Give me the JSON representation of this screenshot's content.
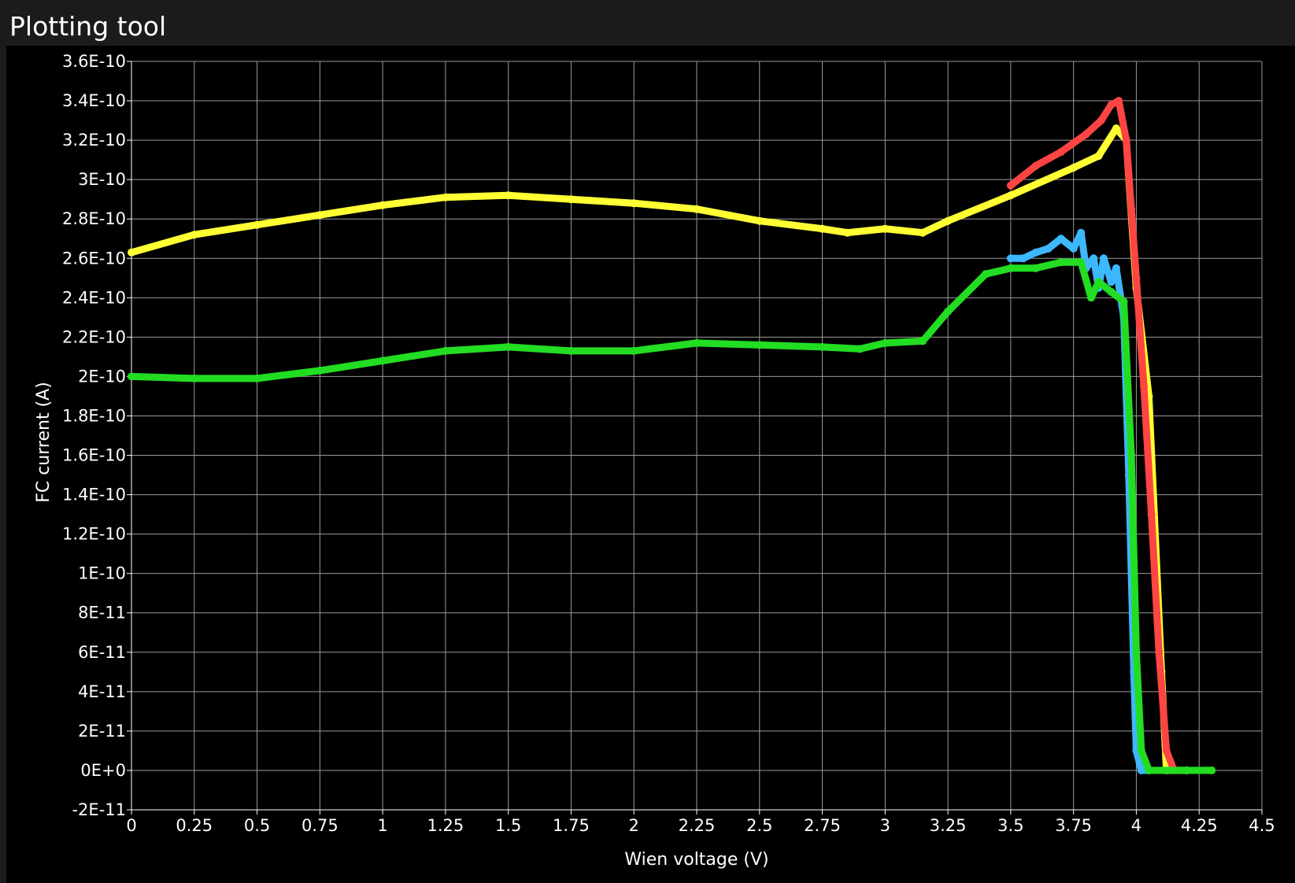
{
  "window": {
    "title": "Plotting tool"
  },
  "colors": {
    "background": "#000000",
    "titlebar": "#1b1b1b",
    "grid": "#9a9a9a",
    "axis_text": "#ffffff"
  },
  "chart_data": {
    "type": "scatter",
    "title": "",
    "xlabel": "Wien voltage (V)",
    "ylabel": "FC current (A)",
    "xlim": [
      0,
      4.5
    ],
    "ylim": [
      -2e-11,
      3.6e-10
    ],
    "grid": true,
    "x_ticks": [
      0,
      0.25,
      0.5,
      0.75,
      1,
      1.25,
      1.5,
      1.75,
      2,
      2.25,
      2.5,
      2.75,
      3,
      3.25,
      3.5,
      3.75,
      4,
      4.25,
      4.5
    ],
    "x_tick_labels": [
      "0",
      "0.25",
      "0.5",
      "0.75",
      "1",
      "1.25",
      "1.5",
      "1.75",
      "2",
      "2.25",
      "2.5",
      "2.75",
      "3",
      "3.25",
      "3.5",
      "3.75",
      "4",
      "4.25",
      "4.5"
    ],
    "y_ticks": [
      -2e-11,
      0,
      2e-11,
      4e-11,
      6e-11,
      8e-11,
      1e-10,
      1.2e-10,
      1.4e-10,
      1.6e-10,
      1.8e-10,
      2e-10,
      2.2e-10,
      2.4e-10,
      2.6e-10,
      2.8e-10,
      3e-10,
      3.2e-10,
      3.4e-10,
      3.6e-10
    ],
    "y_tick_labels": [
      "-2E-11",
      "0E+0",
      "2E-11",
      "4E-11",
      "6E-11",
      "8E-11",
      "1E-10",
      "1.2E-10",
      "1.4E-10",
      "1.6E-10",
      "1.8E-10",
      "2E-10",
      "2.2E-10",
      "2.4E-10",
      "2.6E-10",
      "2.8E-10",
      "3E-10",
      "3.2E-10",
      "3.4E-10",
      "3.6E-10"
    ],
    "series": [
      {
        "color": "#ffff33",
        "x": [
          0,
          0.25,
          0.5,
          0.75,
          1.0,
          1.25,
          1.5,
          1.75,
          2.0,
          2.25,
          2.5,
          2.75,
          2.85,
          3.0,
          3.15,
          3.25,
          3.5,
          3.75,
          3.85,
          3.92,
          3.96,
          4.0,
          4.05,
          4.1,
          4.12,
          4.2
        ],
        "y": [
          2.63e-10,
          2.72e-10,
          2.77e-10,
          2.82e-10,
          2.87e-10,
          2.91e-10,
          2.92e-10,
          2.9e-10,
          2.88e-10,
          2.85e-10,
          2.79e-10,
          2.75e-10,
          2.73e-10,
          2.75e-10,
          2.73e-10,
          2.79e-10,
          2.92e-10,
          3.06e-10,
          3.12e-10,
          3.26e-10,
          3.2e-10,
          2.45e-10,
          1.9e-10,
          5e-11,
          0,
          0
        ]
      },
      {
        "color": "#ff4444",
        "x": [
          3.5,
          3.6,
          3.7,
          3.8,
          3.86,
          3.9,
          3.93,
          3.96,
          3.98,
          4.0,
          4.03,
          4.06,
          4.09,
          4.12,
          4.15
        ],
        "y": [
          2.97e-10,
          3.07e-10,
          3.14e-10,
          3.23e-10,
          3.3e-10,
          3.38e-10,
          3.4e-10,
          3.2e-10,
          2.85e-10,
          2.5e-10,
          1.95e-10,
          1.3e-10,
          6e-11,
          1e-11,
          0
        ]
      },
      {
        "color": "#3db8ff",
        "x": [
          3.5,
          3.55,
          3.6,
          3.65,
          3.7,
          3.75,
          3.78,
          3.8,
          3.83,
          3.85,
          3.87,
          3.9,
          3.92,
          3.95,
          3.97,
          3.99,
          4.0,
          4.02,
          4.05
        ],
        "y": [
          2.6e-10,
          2.6e-10,
          2.63e-10,
          2.65e-10,
          2.7e-10,
          2.65e-10,
          2.73e-10,
          2.55e-10,
          2.6e-10,
          2.45e-10,
          2.6e-10,
          2.48e-10,
          2.55e-10,
          2.3e-10,
          1.5e-10,
          5e-11,
          1e-11,
          0,
          0
        ]
      },
      {
        "color": "#22dd22",
        "x": [
          0,
          0.25,
          0.5,
          0.75,
          1.0,
          1.25,
          1.5,
          1.75,
          2.0,
          2.25,
          2.5,
          2.75,
          2.9,
          3.0,
          3.15,
          3.25,
          3.4,
          3.5,
          3.6,
          3.7,
          3.78,
          3.82,
          3.85,
          3.9,
          3.95,
          3.98,
          4.0,
          4.02,
          4.05,
          4.2,
          4.3
        ],
        "y": [
          2e-10,
          1.99e-10,
          1.99e-10,
          2.03e-10,
          2.08e-10,
          2.13e-10,
          2.15e-10,
          2.13e-10,
          2.13e-10,
          2.17e-10,
          2.16e-10,
          2.15e-10,
          2.14e-10,
          2.17e-10,
          2.18e-10,
          2.33e-10,
          2.52e-10,
          2.55e-10,
          2.55e-10,
          2.58e-10,
          2.58e-10,
          2.4e-10,
          2.48e-10,
          2.43e-10,
          2.38e-10,
          1.6e-10,
          6e-11,
          1e-11,
          0,
          0,
          0
        ]
      }
    ]
  }
}
